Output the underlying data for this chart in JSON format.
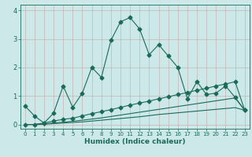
{
  "title": "",
  "xlabel": "Humidex (Indice chaleur)",
  "background_color": "#cce8e8",
  "grid_color": "#aacaca",
  "line_color": "#1a6b5a",
  "xlim": [
    -0.5,
    23.5
  ],
  "ylim": [
    -0.15,
    4.2
  ],
  "yticks": [
    0,
    1,
    2,
    3,
    4
  ],
  "xticks": [
    0,
    1,
    2,
    3,
    4,
    5,
    6,
    7,
    8,
    9,
    10,
    11,
    12,
    13,
    14,
    15,
    16,
    17,
    18,
    19,
    20,
    21,
    22,
    23
  ],
  "line1_x": [
    0,
    1,
    2,
    3,
    4,
    5,
    6,
    7,
    8,
    9,
    10,
    11,
    12,
    13,
    14,
    15,
    16,
    17,
    18,
    19,
    20,
    21,
    22,
    23
  ],
  "line1_y": [
    0.65,
    0.3,
    0.05,
    0.4,
    1.35,
    0.6,
    1.1,
    2.0,
    1.65,
    2.95,
    3.6,
    3.75,
    3.35,
    2.45,
    2.8,
    2.4,
    2.0,
    0.9,
    1.5,
    1.05,
    1.1,
    1.35,
    0.95,
    0.5
  ],
  "line2_x": [
    0,
    1,
    2,
    3,
    4,
    5,
    6,
    7,
    8,
    9,
    10,
    11,
    12,
    13,
    14,
    15,
    16,
    17,
    18,
    19,
    20,
    21,
    22,
    23
  ],
  "line2_y": [
    0.0,
    0.0,
    0.05,
    0.12,
    0.18,
    0.22,
    0.3,
    0.38,
    0.45,
    0.52,
    0.6,
    0.68,
    0.75,
    0.82,
    0.9,
    0.97,
    1.05,
    1.12,
    1.2,
    1.27,
    1.35,
    1.42,
    1.5,
    0.5
  ],
  "line3_x": [
    0,
    1,
    2,
    3,
    4,
    5,
    6,
    7,
    8,
    9,
    10,
    11,
    12,
    13,
    14,
    15,
    16,
    17,
    18,
    19,
    20,
    21,
    22,
    23
  ],
  "line3_y": [
    0.0,
    0.0,
    0.02,
    0.05,
    0.08,
    0.11,
    0.15,
    0.19,
    0.23,
    0.28,
    0.33,
    0.38,
    0.43,
    0.48,
    0.53,
    0.58,
    0.63,
    0.68,
    0.73,
    0.78,
    0.83,
    0.88,
    0.93,
    0.5
  ],
  "line4_x": [
    0,
    1,
    2,
    3,
    4,
    5,
    6,
    7,
    8,
    9,
    10,
    11,
    12,
    13,
    14,
    15,
    16,
    17,
    18,
    19,
    20,
    21,
    22,
    23
  ],
  "line4_y": [
    0.0,
    0.0,
    0.01,
    0.03,
    0.05,
    0.07,
    0.09,
    0.12,
    0.15,
    0.18,
    0.21,
    0.24,
    0.27,
    0.31,
    0.35,
    0.38,
    0.41,
    0.44,
    0.47,
    0.5,
    0.53,
    0.56,
    0.59,
    0.5
  ]
}
